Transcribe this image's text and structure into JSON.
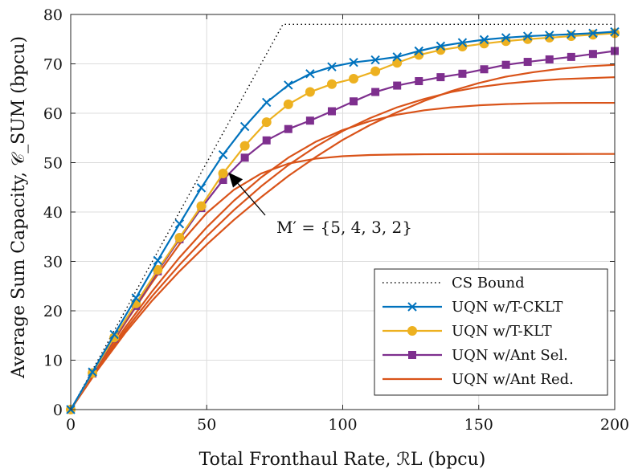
{
  "chart_data": {
    "type": "line",
    "title": "",
    "xlabel": "Total Fronthaul Rate, ℛL (bpcu)",
    "ylabel": "Average Sum Capacity, 𝒞_SUM (bpcu)",
    "xlim": [
      0,
      200
    ],
    "ylim": [
      0,
      80
    ],
    "xticks": [
      0,
      50,
      100,
      150,
      200
    ],
    "yticks": [
      0,
      10,
      20,
      30,
      40,
      50,
      60,
      70,
      80
    ],
    "grid": true,
    "legend_position": "bottom-right",
    "annotation": {
      "text": "M′ = {5, 4, 3, 2}",
      "arrow_to": [
        58,
        48
      ]
    },
    "series": [
      {
        "name": "CS Bound",
        "color": "#000000",
        "style": "dotted",
        "marker": "none",
        "x": [
          0,
          78,
          200
        ],
        "y": [
          0,
          78,
          78
        ]
      },
      {
        "name": "UQN w/T-CKLT",
        "color": "#0072BD",
        "style": "solid",
        "marker": "x",
        "x": [
          0,
          8,
          16,
          24,
          32,
          40,
          48,
          56,
          64,
          72,
          80,
          88,
          96,
          104,
          112,
          120,
          128,
          136,
          144,
          152,
          160,
          168,
          176,
          184,
          192,
          200
        ],
        "y": [
          0,
          7.6,
          15.2,
          22.6,
          30.2,
          37.6,
          44.9,
          51.6,
          57.3,
          62.2,
          65.7,
          68.0,
          69.4,
          70.3,
          70.8,
          71.4,
          72.6,
          73.6,
          74.3,
          74.9,
          75.3,
          75.6,
          75.8,
          76.0,
          76.2,
          76.5
        ]
      },
      {
        "name": "UQN w/T-KLT",
        "color": "#EDB120",
        "style": "solid",
        "marker": "circle",
        "x": [
          0,
          8,
          16,
          24,
          32,
          40,
          48,
          56,
          64,
          72,
          80,
          88,
          96,
          104,
          112,
          120,
          128,
          136,
          144,
          152,
          160,
          168,
          176,
          184,
          192,
          200
        ],
        "y": [
          0,
          7.4,
          14.6,
          21.5,
          28.3,
          34.8,
          41.2,
          47.8,
          53.4,
          58.2,
          61.8,
          64.3,
          65.9,
          67.0,
          68.5,
          70.2,
          71.8,
          72.8,
          73.5,
          74.1,
          74.6,
          75.0,
          75.3,
          75.6,
          75.9,
          76.2
        ]
      },
      {
        "name": "UQN w/Ant Sel.",
        "color": "#7E2F8E",
        "style": "solid",
        "marker": "square",
        "x": [
          0,
          8,
          16,
          24,
          32,
          40,
          48,
          56,
          64,
          72,
          80,
          88,
          96,
          104,
          112,
          120,
          128,
          136,
          144,
          152,
          160,
          168,
          176,
          184,
          192,
          200
        ],
        "y": [
          0,
          7.3,
          14.4,
          21.0,
          28.0,
          34.5,
          40.8,
          46.5,
          51.0,
          54.5,
          56.8,
          58.5,
          60.4,
          62.4,
          64.3,
          65.6,
          66.5,
          67.3,
          68.0,
          68.9,
          69.8,
          70.4,
          70.9,
          71.4,
          72.0,
          72.6
        ]
      },
      {
        "name": "UQN w/Ant Red.",
        "color": "#D95319",
        "style": "solid",
        "marker": "none",
        "x": [
          0,
          10,
          20,
          30,
          40,
          50,
          60,
          70,
          80,
          90,
          100,
          110,
          120,
          130,
          140,
          150,
          160,
          170,
          180,
          190,
          200
        ],
        "y": [
          0,
          8.8,
          17.5,
          25.8,
          33.5,
          39.8,
          44.5,
          47.8,
          49.8,
          50.8,
          51.3,
          51.55,
          51.65,
          51.7,
          51.72,
          51.74,
          51.75,
          51.75,
          51.75,
          51.76,
          51.76
        ]
      },
      {
        "name": "",
        "color": "#D95319",
        "style": "solid",
        "marker": "none",
        "x": [
          0,
          10,
          20,
          30,
          40,
          50,
          60,
          70,
          80,
          90,
          100,
          110,
          120,
          130,
          140,
          150,
          160,
          170,
          180,
          190,
          200
        ],
        "y": [
          0,
          8.5,
          16.6,
          24.0,
          30.8,
          36.9,
          42.3,
          47.0,
          51.0,
          54.2,
          56.6,
          58.4,
          59.7,
          60.6,
          61.2,
          61.6,
          61.85,
          62.0,
          62.08,
          62.1,
          62.1
        ]
      },
      {
        "name": "",
        "color": "#D95319",
        "style": "solid",
        "marker": "none",
        "x": [
          0,
          10,
          20,
          30,
          40,
          50,
          60,
          70,
          80,
          90,
          100,
          110,
          120,
          130,
          140,
          150,
          160,
          170,
          180,
          190,
          200
        ],
        "y": [
          0,
          8.3,
          16.0,
          23.0,
          29.3,
          35.1,
          40.4,
          45.2,
          49.5,
          53.2,
          56.4,
          59.0,
          61.2,
          62.9,
          64.3,
          65.3,
          66.0,
          66.5,
          66.9,
          67.1,
          67.3
        ]
      },
      {
        "name": "",
        "color": "#D95319",
        "style": "solid",
        "marker": "none",
        "x": [
          0,
          10,
          20,
          30,
          40,
          50,
          60,
          70,
          80,
          90,
          100,
          110,
          120,
          130,
          140,
          150,
          160,
          170,
          180,
          190,
          200
        ],
        "y": [
          0,
          8.1,
          15.5,
          22.1,
          28.0,
          33.4,
          38.4,
          43.0,
          47.3,
          51.1,
          54.6,
          57.6,
          60.2,
          62.5,
          64.5,
          66.1,
          67.4,
          68.3,
          69.0,
          69.5,
          69.8
        ]
      }
    ]
  }
}
